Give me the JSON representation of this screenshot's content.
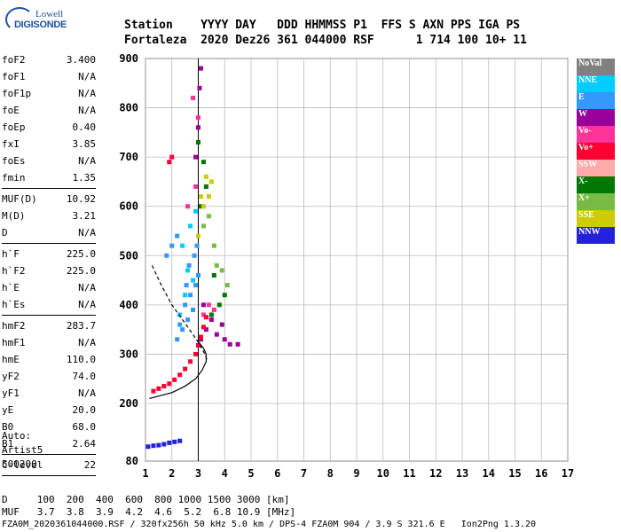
{
  "logo": {
    "line1": "Lowell",
    "line2": "DIGISONDE"
  },
  "header": {
    "labels": [
      "Station",
      "YYYY",
      "DAY",
      "DDD",
      "HHMMSS",
      "P1",
      "FFS",
      "S",
      "AXN",
      "PPS",
      "IGA",
      "PS"
    ],
    "line1": "Station    YYYY DAY   DDD HHMMSS P1  FFS S AXN PPS IGA PS",
    "line2": "Fortaleza  2020 Dez26 361 044000 RSF      1 714 100 10+ 11"
  },
  "params": [
    {
      "label": "foF2",
      "value": "3.400"
    },
    {
      "label": "foF1",
      "value": "N/A"
    },
    {
      "label": "foF1p",
      "value": "N/A"
    },
    {
      "label": "foE",
      "value": "N/A"
    },
    {
      "label": "foEp",
      "value": "0.40"
    },
    {
      "label": "fxI",
      "value": "3.85"
    },
    {
      "label": "foEs",
      "value": "N/A"
    },
    {
      "label": "fmin",
      "value": "1.35"
    },
    {
      "sep": true
    },
    {
      "label": "MUF(D)",
      "value": "10.92"
    },
    {
      "label": "M(D)",
      "value": "3.21"
    },
    {
      "label": "D",
      "value": "N/A"
    },
    {
      "sep": true
    },
    {
      "label": "h`F",
      "value": "225.0"
    },
    {
      "label": "h`F2",
      "value": "225.0"
    },
    {
      "label": "h`E",
      "value": "N/A"
    },
    {
      "label": "h`Es",
      "value": "N/A"
    },
    {
      "sep": true
    },
    {
      "label": "hmF2",
      "value": "283.7"
    },
    {
      "label": "hmF1",
      "value": "N/A"
    },
    {
      "label": "hmE",
      "value": "110.0"
    },
    {
      "label": "yF2",
      "value": "74.0"
    },
    {
      "label": "yF1",
      "value": "N/A"
    },
    {
      "label": "yE",
      "value": "20.0"
    },
    {
      "label": "B0",
      "value": "68.0"
    },
    {
      "label": "B1",
      "value": "2.64"
    },
    {
      "sep": true
    },
    {
      "label": "C-level",
      "value": "22"
    },
    {
      "sep": true
    }
  ],
  "notes": {
    "line1": "Auto:",
    "line2": "Artist5",
    "line3": "500200"
  },
  "legend": [
    {
      "label": "NoVal",
      "color": "#808080"
    },
    {
      "label": "NNE",
      "color": "#00ccff"
    },
    {
      "label": "E",
      "color": "#3399ff"
    },
    {
      "label": "W",
      "color": "#990099"
    },
    {
      "label": "Vo-",
      "color": "#ff3399"
    },
    {
      "label": "Vo+",
      "color": "#ff0033"
    },
    {
      "label": "SSW",
      "color": "#ffaaaa"
    },
    {
      "label": "X-",
      "color": "#007700"
    },
    {
      "label": "X+",
      "color": "#77bb44"
    },
    {
      "label": "SSE",
      "color": "#cccc00"
    },
    {
      "label": "NNW",
      "color": "#2222dd"
    }
  ],
  "footer": {
    "d_line": "D     100  200  400  600  800 1000 1500 3000 [km]",
    "muf_line": "MUF   3.7  3.8  3.9  4.2  4.6  5.2  6.8 10.9 [MHz]",
    "bottom": "FZA0M_2020361044000.RSF / 320fx256h 50 kHz 5.0 km / DPS-4 FZA0M 904 / 3.9 S 321.6 E   Ion2Png 1.3.20"
  },
  "chart_data": {
    "type": "scatter",
    "xlabel": "",
    "ylabel": "",
    "xlim": [
      1,
      17
    ],
    "ylim": [
      80,
      900
    ],
    "x_ticks": [
      1,
      2,
      3,
      4,
      5,
      6,
      7,
      8,
      9,
      10,
      11,
      12,
      13,
      14,
      15,
      16,
      17
    ],
    "y_ticks": [
      80,
      200,
      300,
      400,
      500,
      600,
      700,
      800,
      900
    ],
    "grid": true,
    "vertical_marker": {
      "x": 3.0,
      "color": "#000000"
    },
    "profile_curve": {
      "color": "#000000",
      "x": [
        1.15,
        1.5,
        2.0,
        2.5,
        2.9,
        3.15,
        3.3,
        3.3,
        3.2,
        3.0
      ],
      "y": [
        210,
        215,
        222,
        235,
        250,
        268,
        285,
        300,
        312,
        325
      ]
    },
    "virtual_height_trace": {
      "color": "#000000",
      "style": "dashed",
      "x": [
        1.25,
        1.6,
        2.0,
        2.4,
        2.8,
        3.05,
        3.25,
        3.35
      ],
      "y": [
        480,
        440,
        400,
        370,
        340,
        320,
        300,
        285
      ]
    },
    "series": [
      {
        "name": "NNE",
        "color": "#00ccff",
        "points": [
          [
            2.3,
            380
          ],
          [
            2.5,
            420
          ],
          [
            2.8,
            450
          ],
          [
            2.4,
            520
          ],
          [
            2.7,
            560
          ],
          [
            2.9,
            590
          ],
          [
            2.6,
            470
          ]
        ]
      },
      {
        "name": "E",
        "color": "#3399ff",
        "points": [
          [
            2.2,
            330
          ],
          [
            2.4,
            350
          ],
          [
            2.6,
            370
          ],
          [
            2.8,
            390
          ],
          [
            2.7,
            420
          ],
          [
            2.9,
            440
          ],
          [
            3.0,
            460
          ],
          [
            2.5,
            400
          ],
          [
            2.3,
            360
          ],
          [
            2.65,
            480
          ],
          [
            2.85,
            500
          ],
          [
            2.95,
            520
          ],
          [
            2.55,
            440
          ],
          [
            1.8,
            500
          ],
          [
            2.0,
            520
          ],
          [
            2.2,
            540
          ]
        ]
      },
      {
        "name": "W",
        "color": "#990099",
        "points": [
          [
            3.1,
            330
          ],
          [
            3.3,
            350
          ],
          [
            3.5,
            370
          ],
          [
            3.7,
            340
          ],
          [
            3.9,
            360
          ],
          [
            4.0,
            330
          ],
          [
            4.2,
            320
          ],
          [
            4.5,
            320
          ],
          [
            3.2,
            400
          ],
          [
            2.9,
            700
          ],
          [
            3.0,
            760
          ],
          [
            3.05,
            840
          ],
          [
            3.1,
            880
          ]
        ]
      },
      {
        "name": "Vo-",
        "color": "#ff3399",
        "points": [
          [
            2.9,
            640
          ],
          [
            2.6,
            600
          ],
          [
            3.2,
            380
          ],
          [
            3.4,
            400
          ],
          [
            3.6,
            390
          ],
          [
            3.0,
            780
          ],
          [
            2.8,
            820
          ]
        ]
      },
      {
        "name": "Vo+",
        "color": "#ff0033",
        "points": [
          [
            1.3,
            225
          ],
          [
            1.5,
            230
          ],
          [
            1.7,
            235
          ],
          [
            1.9,
            240
          ],
          [
            2.1,
            248
          ],
          [
            2.3,
            258
          ],
          [
            2.5,
            270
          ],
          [
            2.7,
            285
          ],
          [
            2.9,
            300
          ],
          [
            3.0,
            318
          ],
          [
            3.1,
            335
          ],
          [
            3.2,
            355
          ],
          [
            3.3,
            375
          ],
          [
            1.9,
            690
          ],
          [
            2.0,
            700
          ]
        ]
      },
      {
        "name": "X-",
        "color": "#007700",
        "points": [
          [
            3.1,
            600
          ],
          [
            3.3,
            640
          ],
          [
            3.5,
            380
          ],
          [
            3.8,
            400
          ],
          [
            4.0,
            420
          ],
          [
            3.6,
            460
          ],
          [
            3.0,
            730
          ],
          [
            3.2,
            690
          ]
        ]
      },
      {
        "name": "X+",
        "color": "#77bb44",
        "points": [
          [
            3.2,
            560
          ],
          [
            3.4,
            580
          ],
          [
            3.6,
            520
          ],
          [
            3.7,
            480
          ],
          [
            4.1,
            440
          ],
          [
            3.9,
            470
          ]
        ]
      },
      {
        "name": "SSE",
        "color": "#cccc00",
        "points": [
          [
            3.0,
            540
          ],
          [
            3.2,
            600
          ],
          [
            3.4,
            620
          ],
          [
            3.5,
            650
          ],
          [
            3.3,
            660
          ],
          [
            3.1,
            620
          ]
        ]
      },
      {
        "name": "NNW",
        "color": "#2222dd",
        "points": [
          [
            1.1,
            110
          ],
          [
            1.3,
            112
          ],
          [
            1.5,
            113
          ],
          [
            1.7,
            115
          ],
          [
            1.9,
            118
          ],
          [
            2.1,
            120
          ],
          [
            2.3,
            122
          ]
        ]
      }
    ]
  }
}
